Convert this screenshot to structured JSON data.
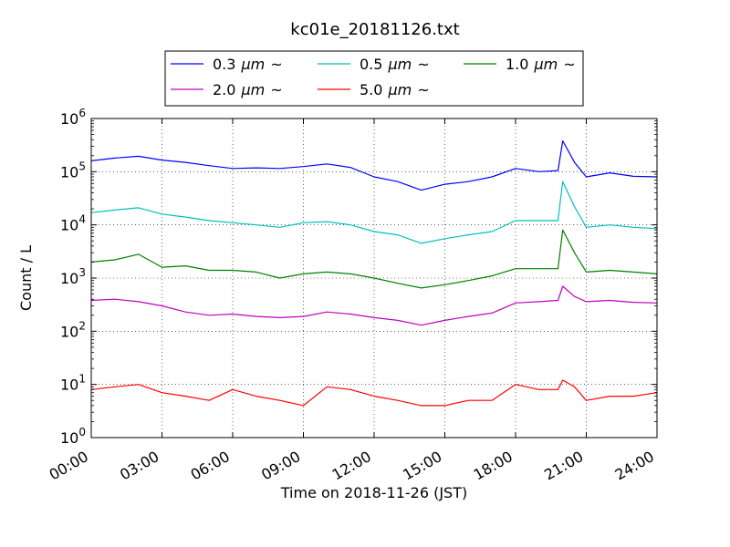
{
  "chart_data": {
    "type": "line",
    "title": "kc01e_20181126.txt",
    "xlabel": "Time on 2018-11-26 (JST)",
    "ylabel": "Count / L",
    "yscale": "log",
    "grid": true,
    "legend_position": "top-outside",
    "x_ticks": [
      "00:00",
      "03:00",
      "06:00",
      "09:00",
      "12:00",
      "15:00",
      "18:00",
      "21:00",
      "24:00"
    ],
    "y_ticks": [
      {
        "base": "10",
        "exp": "0"
      },
      {
        "base": "10",
        "exp": "1"
      },
      {
        "base": "10",
        "exp": "2"
      },
      {
        "base": "10",
        "exp": "3"
      },
      {
        "base": "10",
        "exp": "4"
      },
      {
        "base": "10",
        "exp": "5"
      },
      {
        "base": "10",
        "exp": "6"
      }
    ],
    "xlim_hours": [
      0,
      24
    ],
    "ylim": [
      1,
      1000000
    ],
    "series": [
      {
        "name": "0.3 μm ~",
        "size": "0.3",
        "unit": "μm",
        "suffix": "~",
        "color": "#0000ff",
        "points": [
          [
            0,
            160000
          ],
          [
            1,
            180000
          ],
          [
            2,
            195000
          ],
          [
            3,
            165000
          ],
          [
            4,
            150000
          ],
          [
            5,
            130000
          ],
          [
            6,
            115000
          ],
          [
            7,
            118000
          ],
          [
            8,
            115000
          ],
          [
            9,
            125000
          ],
          [
            10,
            140000
          ],
          [
            11,
            120000
          ],
          [
            12,
            80000
          ],
          [
            13,
            65000
          ],
          [
            14,
            45000
          ],
          [
            15,
            58000
          ],
          [
            16,
            65000
          ],
          [
            17,
            80000
          ],
          [
            18,
            115000
          ],
          [
            19,
            100000
          ],
          [
            19.8,
            105000
          ],
          [
            20,
            380000
          ],
          [
            20.5,
            150000
          ],
          [
            21,
            80000
          ],
          [
            22,
            95000
          ],
          [
            23,
            82000
          ],
          [
            24,
            80000
          ]
        ]
      },
      {
        "name": "0.5 μm ~",
        "size": "0.5",
        "unit": "μm",
        "suffix": "~",
        "color": "#00bfbf",
        "points": [
          [
            0,
            17000
          ],
          [
            1,
            19000
          ],
          [
            2,
            21000
          ],
          [
            3,
            16000
          ],
          [
            4,
            14000
          ],
          [
            5,
            12000
          ],
          [
            6,
            11000
          ],
          [
            7,
            10000
          ],
          [
            8,
            9000
          ],
          [
            9,
            11000
          ],
          [
            10,
            11500
          ],
          [
            11,
            10000
          ],
          [
            12,
            7500
          ],
          [
            13,
            6500
          ],
          [
            14,
            4500
          ],
          [
            15,
            5500
          ],
          [
            16,
            6500
          ],
          [
            17,
            7500
          ],
          [
            18,
            12000
          ],
          [
            19,
            12000
          ],
          [
            19.8,
            12000
          ],
          [
            20,
            65000
          ],
          [
            20.5,
            22000
          ],
          [
            21,
            9000
          ],
          [
            22,
            10000
          ],
          [
            23,
            9000
          ],
          [
            24,
            8500
          ]
        ]
      },
      {
        "name": "1.0 μm ~",
        "size": "1.0",
        "unit": "μm",
        "suffix": "~",
        "color": "#008000",
        "points": [
          [
            0,
            2000
          ],
          [
            1,
            2200
          ],
          [
            2,
            2800
          ],
          [
            3,
            1600
          ],
          [
            4,
            1700
          ],
          [
            5,
            1400
          ],
          [
            6,
            1400
          ],
          [
            7,
            1300
          ],
          [
            8,
            1000
          ],
          [
            9,
            1200
          ],
          [
            10,
            1300
          ],
          [
            11,
            1200
          ],
          [
            12,
            1000
          ],
          [
            13,
            800
          ],
          [
            14,
            650
          ],
          [
            15,
            750
          ],
          [
            16,
            900
          ],
          [
            17,
            1100
          ],
          [
            18,
            1500
          ],
          [
            19,
            1500
          ],
          [
            19.8,
            1500
          ],
          [
            20,
            8000
          ],
          [
            20.5,
            3000
          ],
          [
            21,
            1300
          ],
          [
            22,
            1400
          ],
          [
            23,
            1300
          ],
          [
            24,
            1200
          ]
        ]
      },
      {
        "name": "2.0 μm ~",
        "size": "2.0",
        "unit": "μm",
        "suffix": "~",
        "color": "#bf00bf",
        "points": [
          [
            0,
            380
          ],
          [
            1,
            400
          ],
          [
            2,
            360
          ],
          [
            3,
            300
          ],
          [
            4,
            230
          ],
          [
            5,
            200
          ],
          [
            6,
            210
          ],
          [
            7,
            190
          ],
          [
            8,
            180
          ],
          [
            9,
            190
          ],
          [
            10,
            230
          ],
          [
            11,
            210
          ],
          [
            12,
            180
          ],
          [
            13,
            160
          ],
          [
            14,
            130
          ],
          [
            15,
            160
          ],
          [
            16,
            190
          ],
          [
            17,
            220
          ],
          [
            18,
            340
          ],
          [
            19,
            360
          ],
          [
            19.8,
            380
          ],
          [
            20,
            700
          ],
          [
            20.5,
            450
          ],
          [
            21,
            360
          ],
          [
            22,
            380
          ],
          [
            23,
            350
          ],
          [
            24,
            340
          ]
        ]
      },
      {
        "name": "5.0 μm ~",
        "size": "5.0",
        "unit": "μm",
        "suffix": "~",
        "color": "#ff0000",
        "points": [
          [
            0,
            8
          ],
          [
            1,
            9
          ],
          [
            2,
            10
          ],
          [
            3,
            7
          ],
          [
            4,
            6
          ],
          [
            5,
            5
          ],
          [
            6,
            8
          ],
          [
            7,
            6
          ],
          [
            8,
            5
          ],
          [
            9,
            4
          ],
          [
            10,
            9
          ],
          [
            11,
            8
          ],
          [
            12,
            6
          ],
          [
            13,
            5
          ],
          [
            14,
            4
          ],
          [
            15,
            4
          ],
          [
            16,
            5
          ],
          [
            17,
            5
          ],
          [
            18,
            10
          ],
          [
            19,
            8
          ],
          [
            19.8,
            8
          ],
          [
            20,
            12
          ],
          [
            20.5,
            9
          ],
          [
            21,
            5
          ],
          [
            22,
            6
          ],
          [
            23,
            6
          ],
          [
            24,
            7
          ]
        ]
      }
    ]
  }
}
